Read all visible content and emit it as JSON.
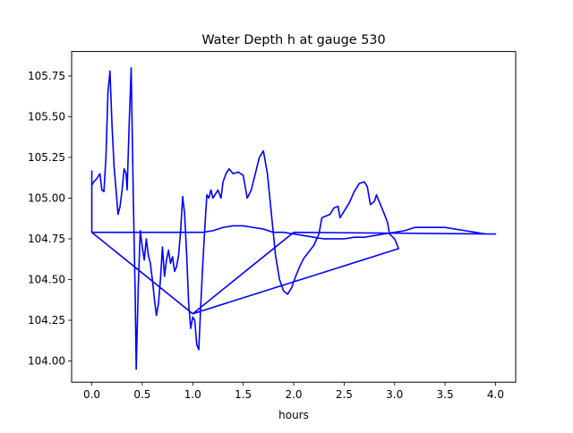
{
  "chart_data": {
    "type": "line",
    "title": "Water Depth h at gauge 530",
    "xlabel": "hours",
    "ylabel": "",
    "xlim": [
      -0.2,
      4.2
    ],
    "ylim": [
      103.87,
      105.9
    ],
    "xticks": [
      0.0,
      0.5,
      1.0,
      1.5,
      2.0,
      2.5,
      3.0,
      3.5,
      4.0
    ],
    "xtick_labels": [
      "0.0",
      "0.5",
      "1.0",
      "1.5",
      "2.0",
      "2.5",
      "3.0",
      "3.5",
      "4.0"
    ],
    "yticks": [
      104.0,
      104.25,
      104.5,
      104.75,
      105.0,
      105.25,
      105.5,
      105.75
    ],
    "ytick_labels": [
      "104.00",
      "104.25",
      "104.50",
      "104.75",
      "105.00",
      "105.25",
      "105.50",
      "105.75"
    ],
    "grid": false,
    "series": [
      {
        "color": "#0000ff",
        "points": [
          [
            0.0,
            105.17
          ],
          [
            0.0,
            105.08
          ],
          [
            0.02,
            105.1
          ],
          [
            0.05,
            105.12
          ],
          [
            0.08,
            105.15
          ],
          [
            0.1,
            105.05
          ],
          [
            0.12,
            105.04
          ],
          [
            0.14,
            105.25
          ],
          [
            0.16,
            105.65
          ],
          [
            0.18,
            105.78
          ],
          [
            0.2,
            105.45
          ],
          [
            0.22,
            105.2
          ],
          [
            0.24,
            105.05
          ],
          [
            0.26,
            104.9
          ],
          [
            0.28,
            104.95
          ],
          [
            0.3,
            105.05
          ],
          [
            0.32,
            105.18
          ],
          [
            0.34,
            105.15
          ],
          [
            0.35,
            105.05
          ],
          [
            0.37,
            105.45
          ],
          [
            0.39,
            105.8
          ],
          [
            0.41,
            105.05
          ],
          [
            0.43,
            104.4
          ],
          [
            0.44,
            103.95
          ],
          [
            0.46,
            104.45
          ],
          [
            0.48,
            104.8
          ],
          [
            0.5,
            104.7
          ],
          [
            0.52,
            104.62
          ],
          [
            0.54,
            104.75
          ],
          [
            0.56,
            104.65
          ],
          [
            0.58,
            104.6
          ],
          [
            0.6,
            104.5
          ],
          [
            0.62,
            104.38
          ],
          [
            0.64,
            104.28
          ],
          [
            0.66,
            104.35
          ],
          [
            0.68,
            104.5
          ],
          [
            0.7,
            104.7
          ],
          [
            0.72,
            104.52
          ],
          [
            0.74,
            104.62
          ],
          [
            0.76,
            104.68
          ],
          [
            0.78,
            104.6
          ],
          [
            0.8,
            104.64
          ],
          [
            0.82,
            104.55
          ],
          [
            0.84,
            104.58
          ],
          [
            0.86,
            104.65
          ],
          [
            0.88,
            104.8
          ],
          [
            0.9,
            105.01
          ],
          [
            0.92,
            104.9
          ],
          [
            0.94,
            104.65
          ],
          [
            0.96,
            104.35
          ],
          [
            0.98,
            104.2
          ],
          [
            1.0,
            104.27
          ],
          [
            1.02,
            104.25
          ],
          [
            1.04,
            104.1
          ],
          [
            1.06,
            104.07
          ],
          [
            1.08,
            104.35
          ],
          [
            1.1,
            104.6
          ],
          [
            1.12,
            104.82
          ],
          [
            1.14,
            105.02
          ],
          [
            1.16,
            105.0
          ],
          [
            1.18,
            105.05
          ],
          [
            1.2,
            105.0
          ],
          [
            1.22,
            105.02
          ],
          [
            1.25,
            105.05
          ],
          [
            1.28,
            105.0
          ],
          [
            1.3,
            105.1
          ],
          [
            1.33,
            105.15
          ],
          [
            1.36,
            105.18
          ],
          [
            1.4,
            105.15
          ],
          [
            1.45,
            105.16
          ],
          [
            1.5,
            105.14
          ],
          [
            1.54,
            105.0
          ],
          [
            1.58,
            105.05
          ],
          [
            1.62,
            105.15
          ],
          [
            1.66,
            105.25
          ],
          [
            1.7,
            105.29
          ],
          [
            1.74,
            105.15
          ],
          [
            1.78,
            104.9
          ],
          [
            1.82,
            104.65
          ],
          [
            1.86,
            104.5
          ],
          [
            1.9,
            104.43
          ],
          [
            1.94,
            104.41
          ],
          [
            1.98,
            104.45
          ],
          [
            2.02,
            104.52
          ],
          [
            2.06,
            104.58
          ],
          [
            2.1,
            104.63
          ],
          [
            2.15,
            104.67
          ],
          [
            2.2,
            104.71
          ],
          [
            2.25,
            104.78
          ],
          [
            2.28,
            104.88
          ],
          [
            2.32,
            104.89
          ],
          [
            2.36,
            104.9
          ],
          [
            2.4,
            104.94
          ],
          [
            2.44,
            104.95
          ],
          [
            2.46,
            104.88
          ],
          [
            2.5,
            104.92
          ],
          [
            2.55,
            104.97
          ],
          [
            2.6,
            105.04
          ],
          [
            2.65,
            105.09
          ],
          [
            2.7,
            105.1
          ],
          [
            2.73,
            105.07
          ],
          [
            2.76,
            104.96
          ],
          [
            2.8,
            104.98
          ],
          [
            2.82,
            105.02
          ],
          [
            2.86,
            104.96
          ],
          [
            2.9,
            104.9
          ],
          [
            2.93,
            104.85
          ],
          [
            2.95,
            104.78
          ],
          [
            3.0,
            104.75
          ],
          [
            3.04,
            104.69
          ],
          [
            1.0,
            104.29
          ],
          [
            0.0,
            104.79
          ],
          [
            1.0,
            104.79
          ],
          [
            1.1,
            104.79
          ],
          [
            1.2,
            104.8
          ],
          [
            1.3,
            104.82
          ],
          [
            1.4,
            104.83
          ],
          [
            1.5,
            104.83
          ],
          [
            1.6,
            104.82
          ],
          [
            1.7,
            104.81
          ],
          [
            1.8,
            104.79
          ],
          [
            1.9,
            104.79
          ],
          [
            2.0,
            104.78
          ],
          [
            2.1,
            104.77
          ],
          [
            2.2,
            104.76
          ],
          [
            2.3,
            104.75
          ],
          [
            2.4,
            104.75
          ],
          [
            2.5,
            104.75
          ],
          [
            2.6,
            104.76
          ],
          [
            2.7,
            104.76
          ],
          [
            2.8,
            104.77
          ],
          [
            2.9,
            104.78
          ],
          [
            3.0,
            104.79
          ],
          [
            3.1,
            104.8
          ],
          [
            3.2,
            104.82
          ],
          [
            3.3,
            104.82
          ],
          [
            3.4,
            104.82
          ],
          [
            3.5,
            104.82
          ],
          [
            3.6,
            104.81
          ],
          [
            3.7,
            104.8
          ],
          [
            3.8,
            104.79
          ],
          [
            3.9,
            104.78
          ],
          [
            4.0,
            104.78
          ],
          [
            4.0,
            104.78
          ],
          [
            2.0,
            104.79
          ],
          [
            1.0,
            104.29
          ],
          [
            0.0,
            104.79
          ],
          [
            0.0,
            105.17
          ]
        ]
      }
    ]
  }
}
